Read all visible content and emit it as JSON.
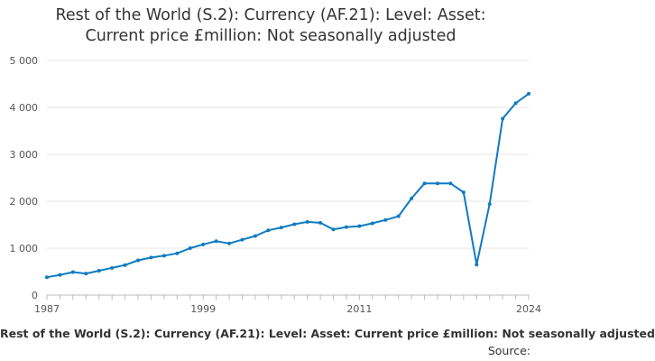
{
  "chart_data": {
    "type": "line",
    "title_lines": [
      "Rest of the World (S.2): Currency (AF.21): Level: Asset:",
      "Current price £million: Not seasonally adjusted"
    ],
    "xlabel": "",
    "ylabel": "",
    "ylim": [
      0,
      5000
    ],
    "xlim": [
      1987,
      2024
    ],
    "yticks": [
      0,
      1000,
      2000,
      3000,
      4000,
      5000
    ],
    "ytick_labels": [
      "0",
      "1 000",
      "2 000",
      "3 000",
      "4 000",
      "5 000"
    ],
    "xtick_labels": [
      "1987",
      "1999",
      "2011",
      "2024"
    ],
    "grid": "horizontal",
    "color": "#0f7bc1",
    "legend": "Rest of the World (S.2): Currency (AF.21): Level: Asset: Current price £million: Not seasonally adjusted",
    "source_label": "Source:",
    "series": [
      {
        "name": "Rest of the World (S.2): Currency (AF.21): Level: Asset: Current price £million: Not seasonally adjusted",
        "x": [
          1987,
          1988,
          1989,
          1990,
          1991,
          1992,
          1993,
          1994,
          1995,
          1996,
          1997,
          1998,
          1999,
          2000,
          2001,
          2002,
          2003,
          2004,
          2005,
          2006,
          2007,
          2008,
          2009,
          2010,
          2011,
          2012,
          2013,
          2014,
          2015,
          2016,
          2017,
          2018,
          2019,
          2020,
          2021,
          2022,
          2023,
          2024
        ],
        "values": [
          380,
          430,
          490,
          460,
          520,
          580,
          640,
          740,
          800,
          840,
          890,
          1000,
          1080,
          1150,
          1100,
          1180,
          1260,
          1380,
          1440,
          1510,
          1560,
          1540,
          1400,
          1450,
          1470,
          1530,
          1600,
          1680,
          2060,
          2380,
          2380,
          2380,
          2190,
          650,
          1940,
          3760,
          4090,
          4290
        ]
      }
    ]
  }
}
